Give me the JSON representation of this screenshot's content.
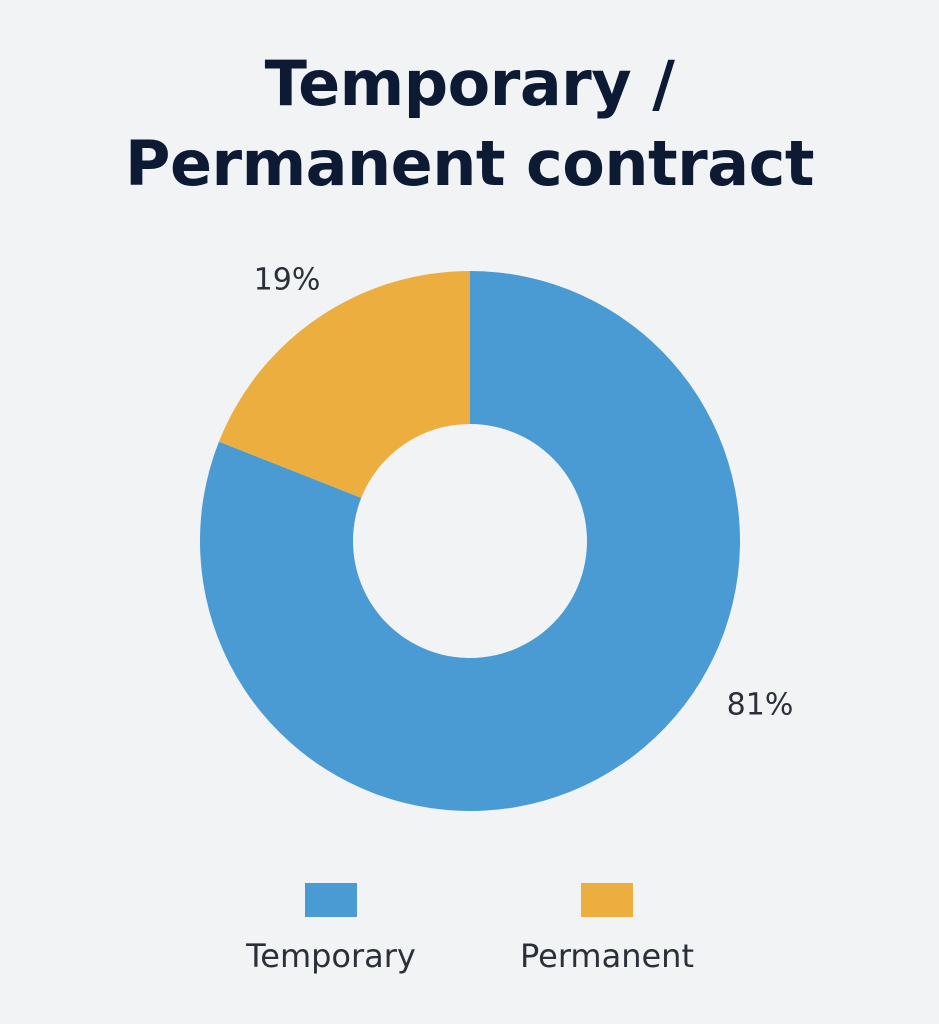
{
  "chart_data": {
    "type": "pie",
    "variant": "donut",
    "title": [
      "Temporary /",
      "Permanent contract"
    ],
    "slices": [
      {
        "name": "Temporary",
        "value": 81,
        "label": "81%",
        "color": "#4a9ad4"
      },
      {
        "name": "Permanent",
        "value": 19,
        "label": "19%",
        "color": "#edae40"
      }
    ],
    "legend": {
      "placement": "bottom",
      "entries": [
        {
          "name": "Temporary",
          "color": "#4a9ad4"
        },
        {
          "name": "Permanent",
          "color": "#edae40"
        }
      ]
    }
  }
}
